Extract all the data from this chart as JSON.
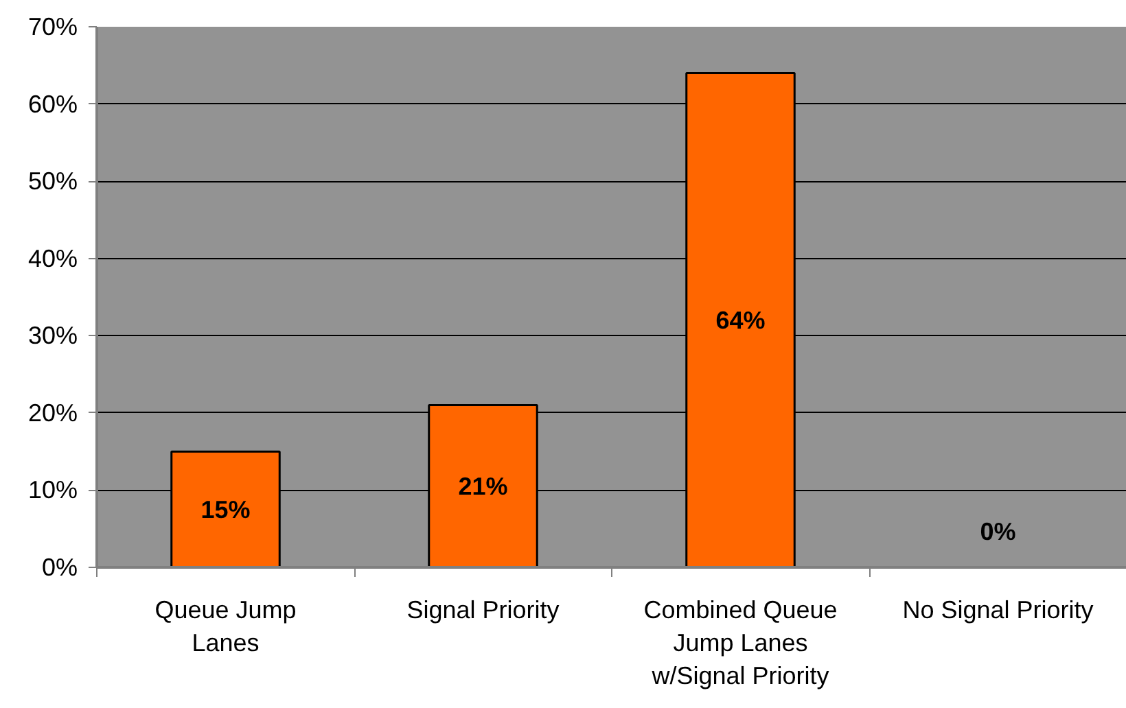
{
  "chart_data": {
    "type": "bar",
    "categories": [
      "Queue Jump\nLanes",
      "Signal Priority",
      "Combined Queue\nJump Lanes\nw/Signal Priority",
      "No Signal Priority"
    ],
    "values": [
      15,
      21,
      64,
      0
    ],
    "color": "#ff6600",
    "value_labels": [
      "15%",
      "21%",
      "64%",
      "0%"
    ],
    "ylim": [
      0,
      70
    ],
    "yticks": [
      {
        "value": 0,
        "label": "0%"
      },
      {
        "value": 10,
        "label": "10%"
      },
      {
        "value": 20,
        "label": "20%"
      },
      {
        "value": 30,
        "label": "30%"
      },
      {
        "value": 40,
        "label": "40%"
      },
      {
        "value": 50,
        "label": "50%"
      },
      {
        "value": 60,
        "label": "60%"
      },
      {
        "value": 70,
        "label": "70%"
      }
    ],
    "grid": "y"
  }
}
